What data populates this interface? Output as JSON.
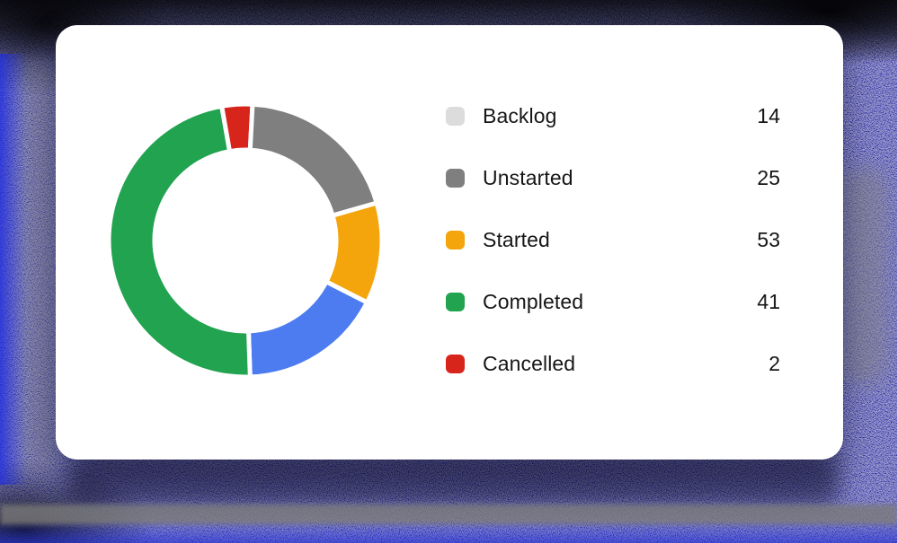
{
  "chart_data": {
    "type": "donut",
    "title": "",
    "legend_position": "right",
    "legend": [
      {
        "label": "Backlog",
        "value": 14,
        "color": "#dcdcdc"
      },
      {
        "label": "Unstarted",
        "value": 25,
        "color": "#7f7f7f"
      },
      {
        "label": "Started",
        "value": 53,
        "color": "#f4a50c"
      },
      {
        "label": "Completed",
        "value": 41,
        "color": "#21a350"
      },
      {
        "label": "Cancelled",
        "value": 2,
        "color": "#d8251c"
      }
    ],
    "donut_segments_visual": [
      {
        "name": "cancelled",
        "color": "#d8251c",
        "start_deg": -10,
        "end_deg": 3
      },
      {
        "name": "unstarted",
        "color": "#7f7f7f",
        "start_deg": 3,
        "end_deg": 74
      },
      {
        "name": "started",
        "color": "#f4a50c",
        "start_deg": 74,
        "end_deg": 117
      },
      {
        "name": "blue",
        "color": "#4d7cf0",
        "start_deg": 117,
        "end_deg": 178
      },
      {
        "name": "completed",
        "color": "#21a350",
        "start_deg": 178,
        "end_deg": 350
      }
    ],
    "ring": {
      "outer_radius": 152,
      "inner_radius": 101,
      "gap_stroke": 5
    }
  },
  "background": {
    "base_color": "#1e2178",
    "style": "blue-static-noise"
  }
}
